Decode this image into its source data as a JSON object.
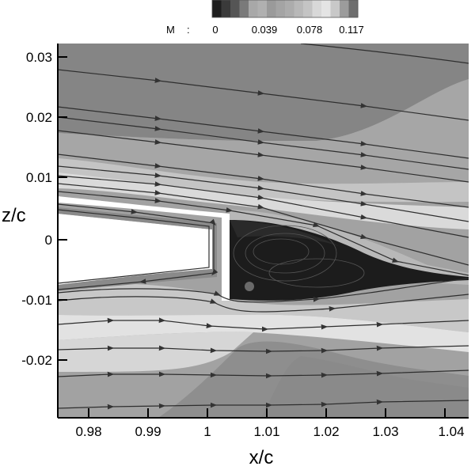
{
  "chart_data": {
    "type": "heatmap",
    "subtype": "contour with streamlines",
    "title": "",
    "xlabel": "x/c",
    "ylabel": "z/c",
    "xlim": [
      0.975,
      1.0425
    ],
    "ylim": [
      -0.029,
      0.032
    ],
    "x_ticks": [
      0.98,
      0.99,
      1,
      1.01,
      1.02,
      1.03,
      1.04
    ],
    "x_tick_labels": [
      "0.98",
      "0.99",
      "1",
      "1.01",
      "1.02",
      "1.03",
      "1.04"
    ],
    "y_ticks": [
      0.03,
      0.02,
      0.01,
      0,
      -0.01,
      -0.02
    ],
    "y_tick_labels": [
      "0.03",
      "0.02",
      "0.01",
      "0",
      "-0.01",
      "-0.02"
    ],
    "grid": false,
    "colorbar": {
      "variable": "M",
      "separator": ":",
      "position": "top",
      "tick_values": [
        0,
        0.039,
        0.078,
        0.117
      ],
      "tick_labels": [
        "0",
        "0.039",
        "0.078",
        "0.117"
      ],
      "levels": 16,
      "colors": [
        "#1e1e1e",
        "#3a3a3a",
        "#555555",
        "#7a7a7a",
        "#a8a8a8",
        "#b0b0b0",
        "#9a9a9a",
        "#a4a4a4",
        "#acacac",
        "#b8b8b8",
        "#c4c4c4",
        "#d8d8d8",
        "#e4e4e4",
        "#c8c8c8",
        "#9c9c9c",
        "#6e6e6e"
      ]
    },
    "regions": [
      {
        "name": "upper outer flow",
        "mach_approx": 0.05,
        "shade": "#8c8c8c"
      },
      {
        "name": "near-wake recirculation bubble",
        "x_range": [
          1.003,
          1.04
        ],
        "mach_approx": 0.0,
        "shade": "#1a1a1a"
      },
      {
        "name": "upper and lower shear layers",
        "mach_approx": 0.117,
        "shade": "#e0e0e0"
      },
      {
        "name": "lower outer flow",
        "mach_approx": 0.06,
        "shade": "#9a9a9a"
      },
      {
        "name": "solid body (trailing edge / gap)",
        "x_range": [
          0.975,
          1.004
        ],
        "shade": "#ffffff"
      }
    ],
    "streamlines": "flow left to right, converging into wake at z/c ≈ -0.006 near x/c = 1.04; closed recirculating streamlines behind blunt trailing edge at x/c ≈ 1.003"
  }
}
